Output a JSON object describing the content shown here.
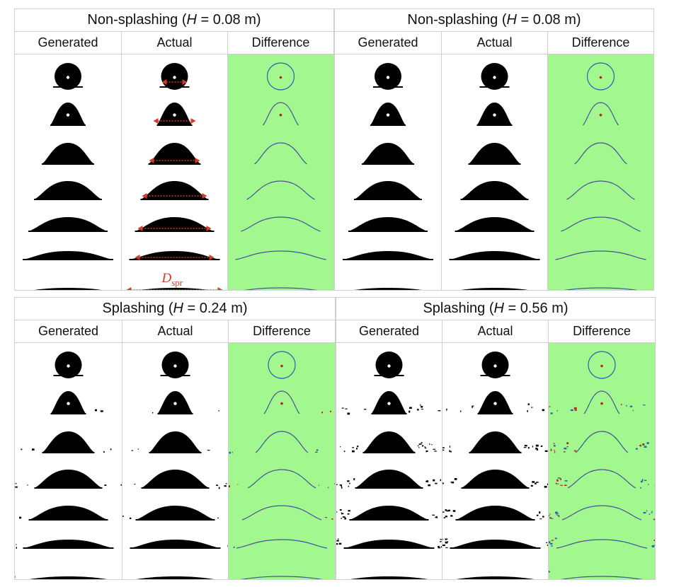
{
  "colors": {
    "droplet": "#000000",
    "difference_background": "#a3f78f",
    "difference_blue": "#2a5fb8",
    "difference_red": "#b3241c",
    "annotation": "#d23a2a",
    "grid_line": "#cfcfcf"
  },
  "annotation": {
    "symbol": "D",
    "subscript": "spr"
  },
  "panels": [
    {
      "regime": "non-splashing",
      "title": {
        "prefix": "Non-splashing (",
        "variable": "H",
        "middle": " = 0.08",
        "suffix": " m)"
      },
      "columns": [
        {
          "kind": "generated",
          "label": "Generated"
        },
        {
          "kind": "actual",
          "label": "Actual"
        },
        {
          "kind": "difference",
          "label": "Difference"
        }
      ],
      "show_spread_arrows": true
    },
    {
      "regime": "non-splashing",
      "title": {
        "prefix": "Non-splashing (",
        "variable": "H",
        "middle": " = 0.08",
        "suffix": " m)"
      },
      "columns": [
        {
          "kind": "generated",
          "label": "Generated"
        },
        {
          "kind": "actual",
          "label": "Actual"
        },
        {
          "kind": "difference",
          "label": "Difference"
        }
      ],
      "show_spread_arrows": false
    },
    {
      "regime": "splashing-mild",
      "title": {
        "prefix": "Splashing (",
        "variable": "H",
        "middle": " = 0.24",
        "suffix": " m)"
      },
      "columns": [
        {
          "kind": "generated",
          "label": "Generated"
        },
        {
          "kind": "actual",
          "label": "Actual"
        },
        {
          "kind": "difference",
          "label": "Difference"
        }
      ],
      "show_spread_arrows": false
    },
    {
      "regime": "splashing-strong",
      "title": {
        "prefix": "Splashing (",
        "variable": "H",
        "middle": " = 0.56",
        "suffix": " m)"
      },
      "columns": [
        {
          "kind": "generated",
          "label": "Generated"
        },
        {
          "kind": "actual",
          "label": "Actual"
        },
        {
          "kind": "difference",
          "label": "Difference"
        }
      ],
      "show_spread_arrows": false
    }
  ]
}
